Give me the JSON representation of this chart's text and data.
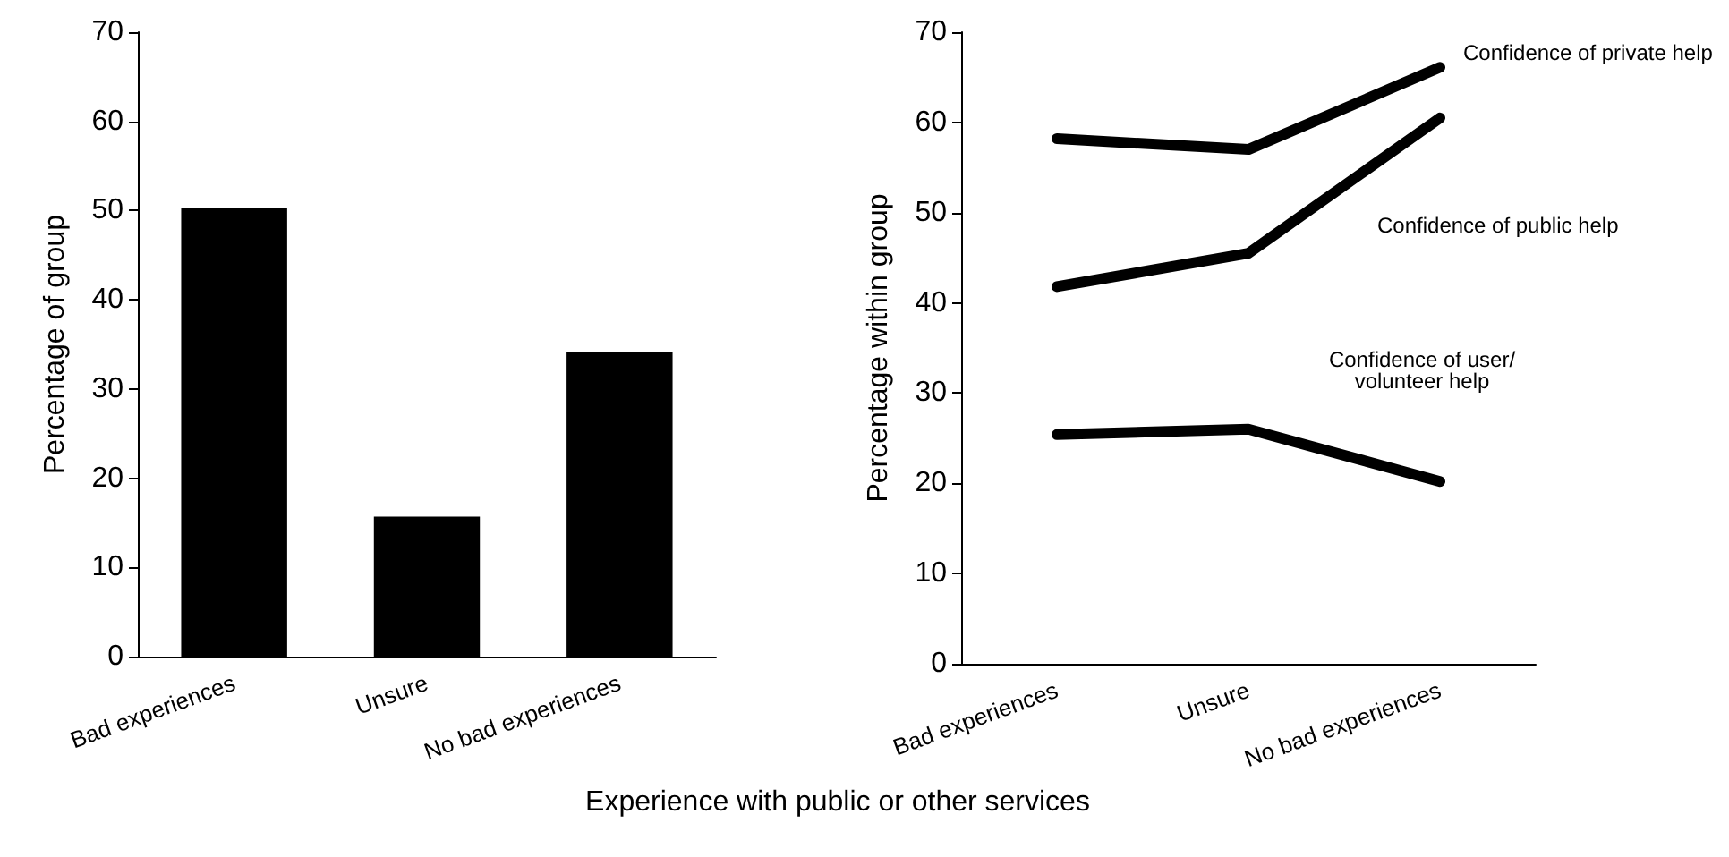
{
  "chart_data": [
    {
      "type": "bar",
      "categories": [
        "Bad experiences",
        "Unsure",
        "No bad experiences"
      ],
      "values": [
        50.3,
        15.7,
        34.1
      ],
      "color": "#000000",
      "ylabel": "Percentage of group",
      "xlabel": "Experience with public or other services",
      "ylim": [
        0,
        70
      ],
      "yticks": [
        0,
        10,
        20,
        30,
        40,
        50,
        60,
        70
      ],
      "grid": false,
      "legend": false
    },
    {
      "type": "line",
      "categories": [
        "Bad experiences",
        "Unsure",
        "No bad experiences"
      ],
      "ylabel": "Percentage within group",
      "ylim": [
        0,
        70
      ],
      "yticks": [
        0,
        10,
        20,
        30,
        40,
        50,
        60,
        70
      ],
      "grid": false,
      "legend": false,
      "marker": "none",
      "line_style": "solid",
      "series": [
        {
          "name": "Confidence of private help",
          "color": "#000000",
          "values": [
            58.2,
            57.0,
            66.1
          ]
        },
        {
          "name": "Confidence of public help",
          "color": "#000000",
          "values": [
            41.8,
            45.5,
            60.5
          ]
        },
        {
          "name": "Confidence of user/volunteer help",
          "color": "#000000",
          "values": [
            25.4,
            26.0,
            20.2
          ]
        }
      ]
    }
  ]
}
